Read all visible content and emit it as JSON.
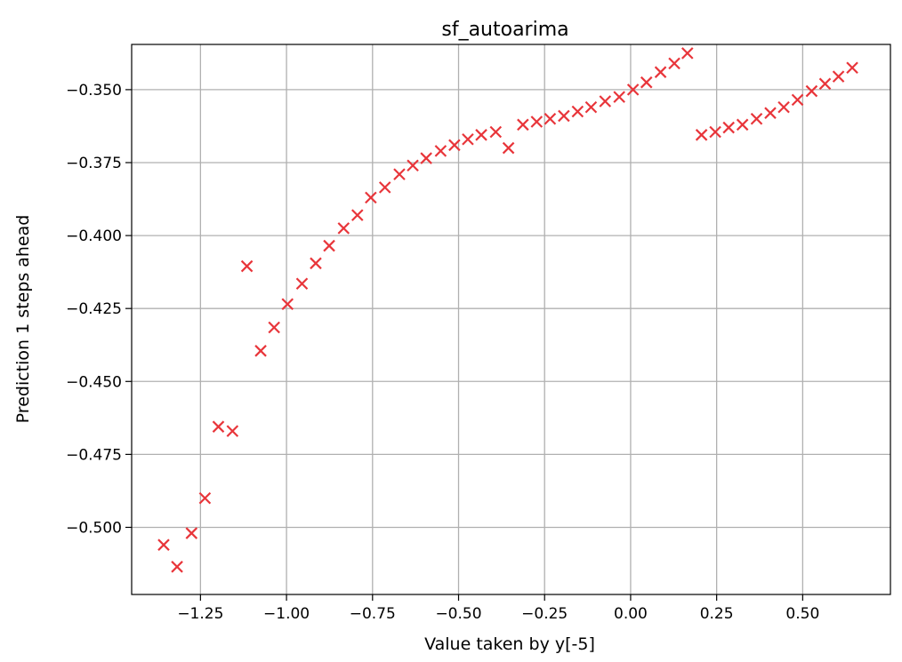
{
  "chart_data": {
    "type": "scatter",
    "title": "sf_autoarima",
    "xlabel": "Value taken by y[-5]",
    "ylabel": "Prediction 1 steps ahead",
    "xlim": [
      -1.45,
      0.755
    ],
    "ylim": [
      -0.523,
      -0.3345
    ],
    "grid": true,
    "marker": "x",
    "marker_color": "#e8353a",
    "x_ticks": [
      {
        "value": -1.25,
        "label": "−1.25"
      },
      {
        "value": -1.0,
        "label": "−1.00"
      },
      {
        "value": -0.75,
        "label": "−0.75"
      },
      {
        "value": -0.5,
        "label": "−0.50"
      },
      {
        "value": -0.25,
        "label": "−0.25"
      },
      {
        "value": 0.0,
        "label": "0.00"
      },
      {
        "value": 0.25,
        "label": "0.25"
      },
      {
        "value": 0.5,
        "label": "0.50"
      }
    ],
    "y_ticks": [
      {
        "value": -0.35,
        "label": "−0.350"
      },
      {
        "value": -0.375,
        "label": "−0.375"
      },
      {
        "value": -0.4,
        "label": "−0.400"
      },
      {
        "value": -0.425,
        "label": "−0.425"
      },
      {
        "value": -0.45,
        "label": "−0.450"
      },
      {
        "value": -0.475,
        "label": "−0.475"
      },
      {
        "value": -0.5,
        "label": "−0.500"
      }
    ],
    "points": [
      {
        "x": -1.357,
        "y": -0.506
      },
      {
        "x": -1.318,
        "y": -0.5135
      },
      {
        "x": -1.276,
        "y": -0.502
      },
      {
        "x": -1.237,
        "y": -0.49
      },
      {
        "x": -1.198,
        "y": -0.4655
      },
      {
        "x": -1.157,
        "y": -0.467
      },
      {
        "x": -1.115,
        "y": -0.4105
      },
      {
        "x": -1.075,
        "y": -0.4395
      },
      {
        "x": -1.036,
        "y": -0.4315
      },
      {
        "x": -0.997,
        "y": -0.4235
      },
      {
        "x": -0.955,
        "y": -0.4165
      },
      {
        "x": -0.915,
        "y": -0.4095
      },
      {
        "x": -0.876,
        "y": -0.4035
      },
      {
        "x": -0.834,
        "y": -0.3975
      },
      {
        "x": -0.794,
        "y": -0.393
      },
      {
        "x": -0.755,
        "y": -0.387
      },
      {
        "x": -0.714,
        "y": -0.3835
      },
      {
        "x": -0.672,
        "y": -0.379
      },
      {
        "x": -0.633,
        "y": -0.376
      },
      {
        "x": -0.594,
        "y": -0.3735
      },
      {
        "x": -0.552,
        "y": -0.371
      },
      {
        "x": -0.512,
        "y": -0.369
      },
      {
        "x": -0.473,
        "y": -0.367
      },
      {
        "x": -0.434,
        "y": -0.3655
      },
      {
        "x": -0.392,
        "y": -0.3645
      },
      {
        "x": -0.355,
        "y": -0.37
      },
      {
        "x": -0.313,
        "y": -0.362
      },
      {
        "x": -0.273,
        "y": -0.361
      },
      {
        "x": -0.234,
        "y": -0.36
      },
      {
        "x": -0.194,
        "y": -0.359
      },
      {
        "x": -0.154,
        "y": -0.3575
      },
      {
        "x": -0.115,
        "y": -0.356
      },
      {
        "x": -0.074,
        "y": -0.354
      },
      {
        "x": -0.033,
        "y": -0.3525
      },
      {
        "x": 0.007,
        "y": -0.35
      },
      {
        "x": 0.046,
        "y": -0.3475
      },
      {
        "x": 0.087,
        "y": -0.344
      },
      {
        "x": 0.127,
        "y": -0.341
      },
      {
        "x": 0.165,
        "y": -0.3375
      },
      {
        "x": 0.206,
        "y": -0.3655
      },
      {
        "x": 0.246,
        "y": -0.3645
      },
      {
        "x": 0.285,
        "y": -0.363
      },
      {
        "x": 0.325,
        "y": -0.362
      },
      {
        "x": 0.366,
        "y": -0.36
      },
      {
        "x": 0.406,
        "y": -0.358
      },
      {
        "x": 0.445,
        "y": -0.356
      },
      {
        "x": 0.485,
        "y": -0.3535
      },
      {
        "x": 0.526,
        "y": -0.3505
      },
      {
        "x": 0.565,
        "y": -0.348
      },
      {
        "x": 0.604,
        "y": -0.3455
      },
      {
        "x": 0.644,
        "y": -0.3425
      }
    ]
  }
}
